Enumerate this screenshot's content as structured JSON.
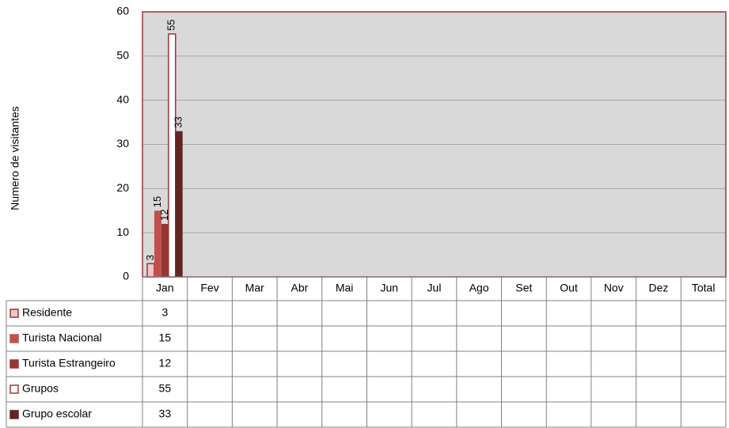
{
  "chart_data": {
    "type": "bar",
    "y_label": "Numero de visitantes",
    "categories": [
      "Jan",
      "Fev",
      "Mar",
      "Abr",
      "Mai",
      "Jun",
      "Jul",
      "Ago",
      "Set",
      "Out",
      "Nov",
      "Dez",
      "Total"
    ],
    "series": [
      {
        "name": "Residente",
        "color": "#f2c4c4",
        "values": [
          3,
          null,
          null,
          null,
          null,
          null,
          null,
          null,
          null,
          null,
          null,
          null,
          null
        ]
      },
      {
        "name": "Turista Nacional",
        "color": "#c0504d",
        "values": [
          15,
          null,
          null,
          null,
          null,
          null,
          null,
          null,
          null,
          null,
          null,
          null,
          null
        ]
      },
      {
        "name": "Turista Estrangeiro",
        "color": "#953735",
        "values": [
          12,
          null,
          null,
          null,
          null,
          null,
          null,
          null,
          null,
          null,
          null,
          null,
          null
        ]
      },
      {
        "name": "Grupos",
        "color": "#ffffff",
        "values": [
          55,
          null,
          null,
          null,
          null,
          null,
          null,
          null,
          null,
          null,
          null,
          null,
          null
        ]
      },
      {
        "name": "Grupo escolar",
        "color": "#632523",
        "values": [
          33,
          null,
          null,
          null,
          null,
          null,
          null,
          null,
          null,
          null,
          null,
          null,
          null
        ]
      }
    ],
    "ylim": [
      0,
      60
    ],
    "yticks": [
      0,
      10,
      20,
      30,
      40,
      50,
      60
    ],
    "grid": true
  }
}
